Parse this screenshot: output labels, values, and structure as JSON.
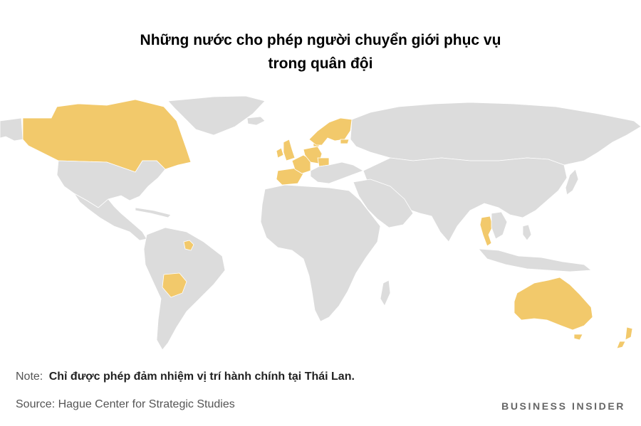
{
  "title_lines": [
    "Những nước cho phép người chuyển giới phục vụ",
    "trong quân đội"
  ],
  "note": {
    "label": "Note:",
    "text": "Chỉ được phép đảm nhiệm vị trí hành chính tại Thái Lan."
  },
  "source": "Source: Hague Center for Strategic Studies",
  "brand": "BUSINESS INSIDER",
  "colors": {
    "highlight": "#f2c96b",
    "land": "#dcdcdc",
    "background": "#ffffff"
  },
  "highlighted_countries": [
    "Canada",
    "Bolivia",
    "Guyana",
    "United Kingdom",
    "Ireland",
    "Spain",
    "France",
    "Belgium",
    "Netherlands",
    "Germany",
    "Austria",
    "Czech Republic",
    "Denmark",
    "Norway",
    "Sweden",
    "Finland",
    "Estonia",
    "Thailand",
    "Australia",
    "New Zealand"
  ]
}
